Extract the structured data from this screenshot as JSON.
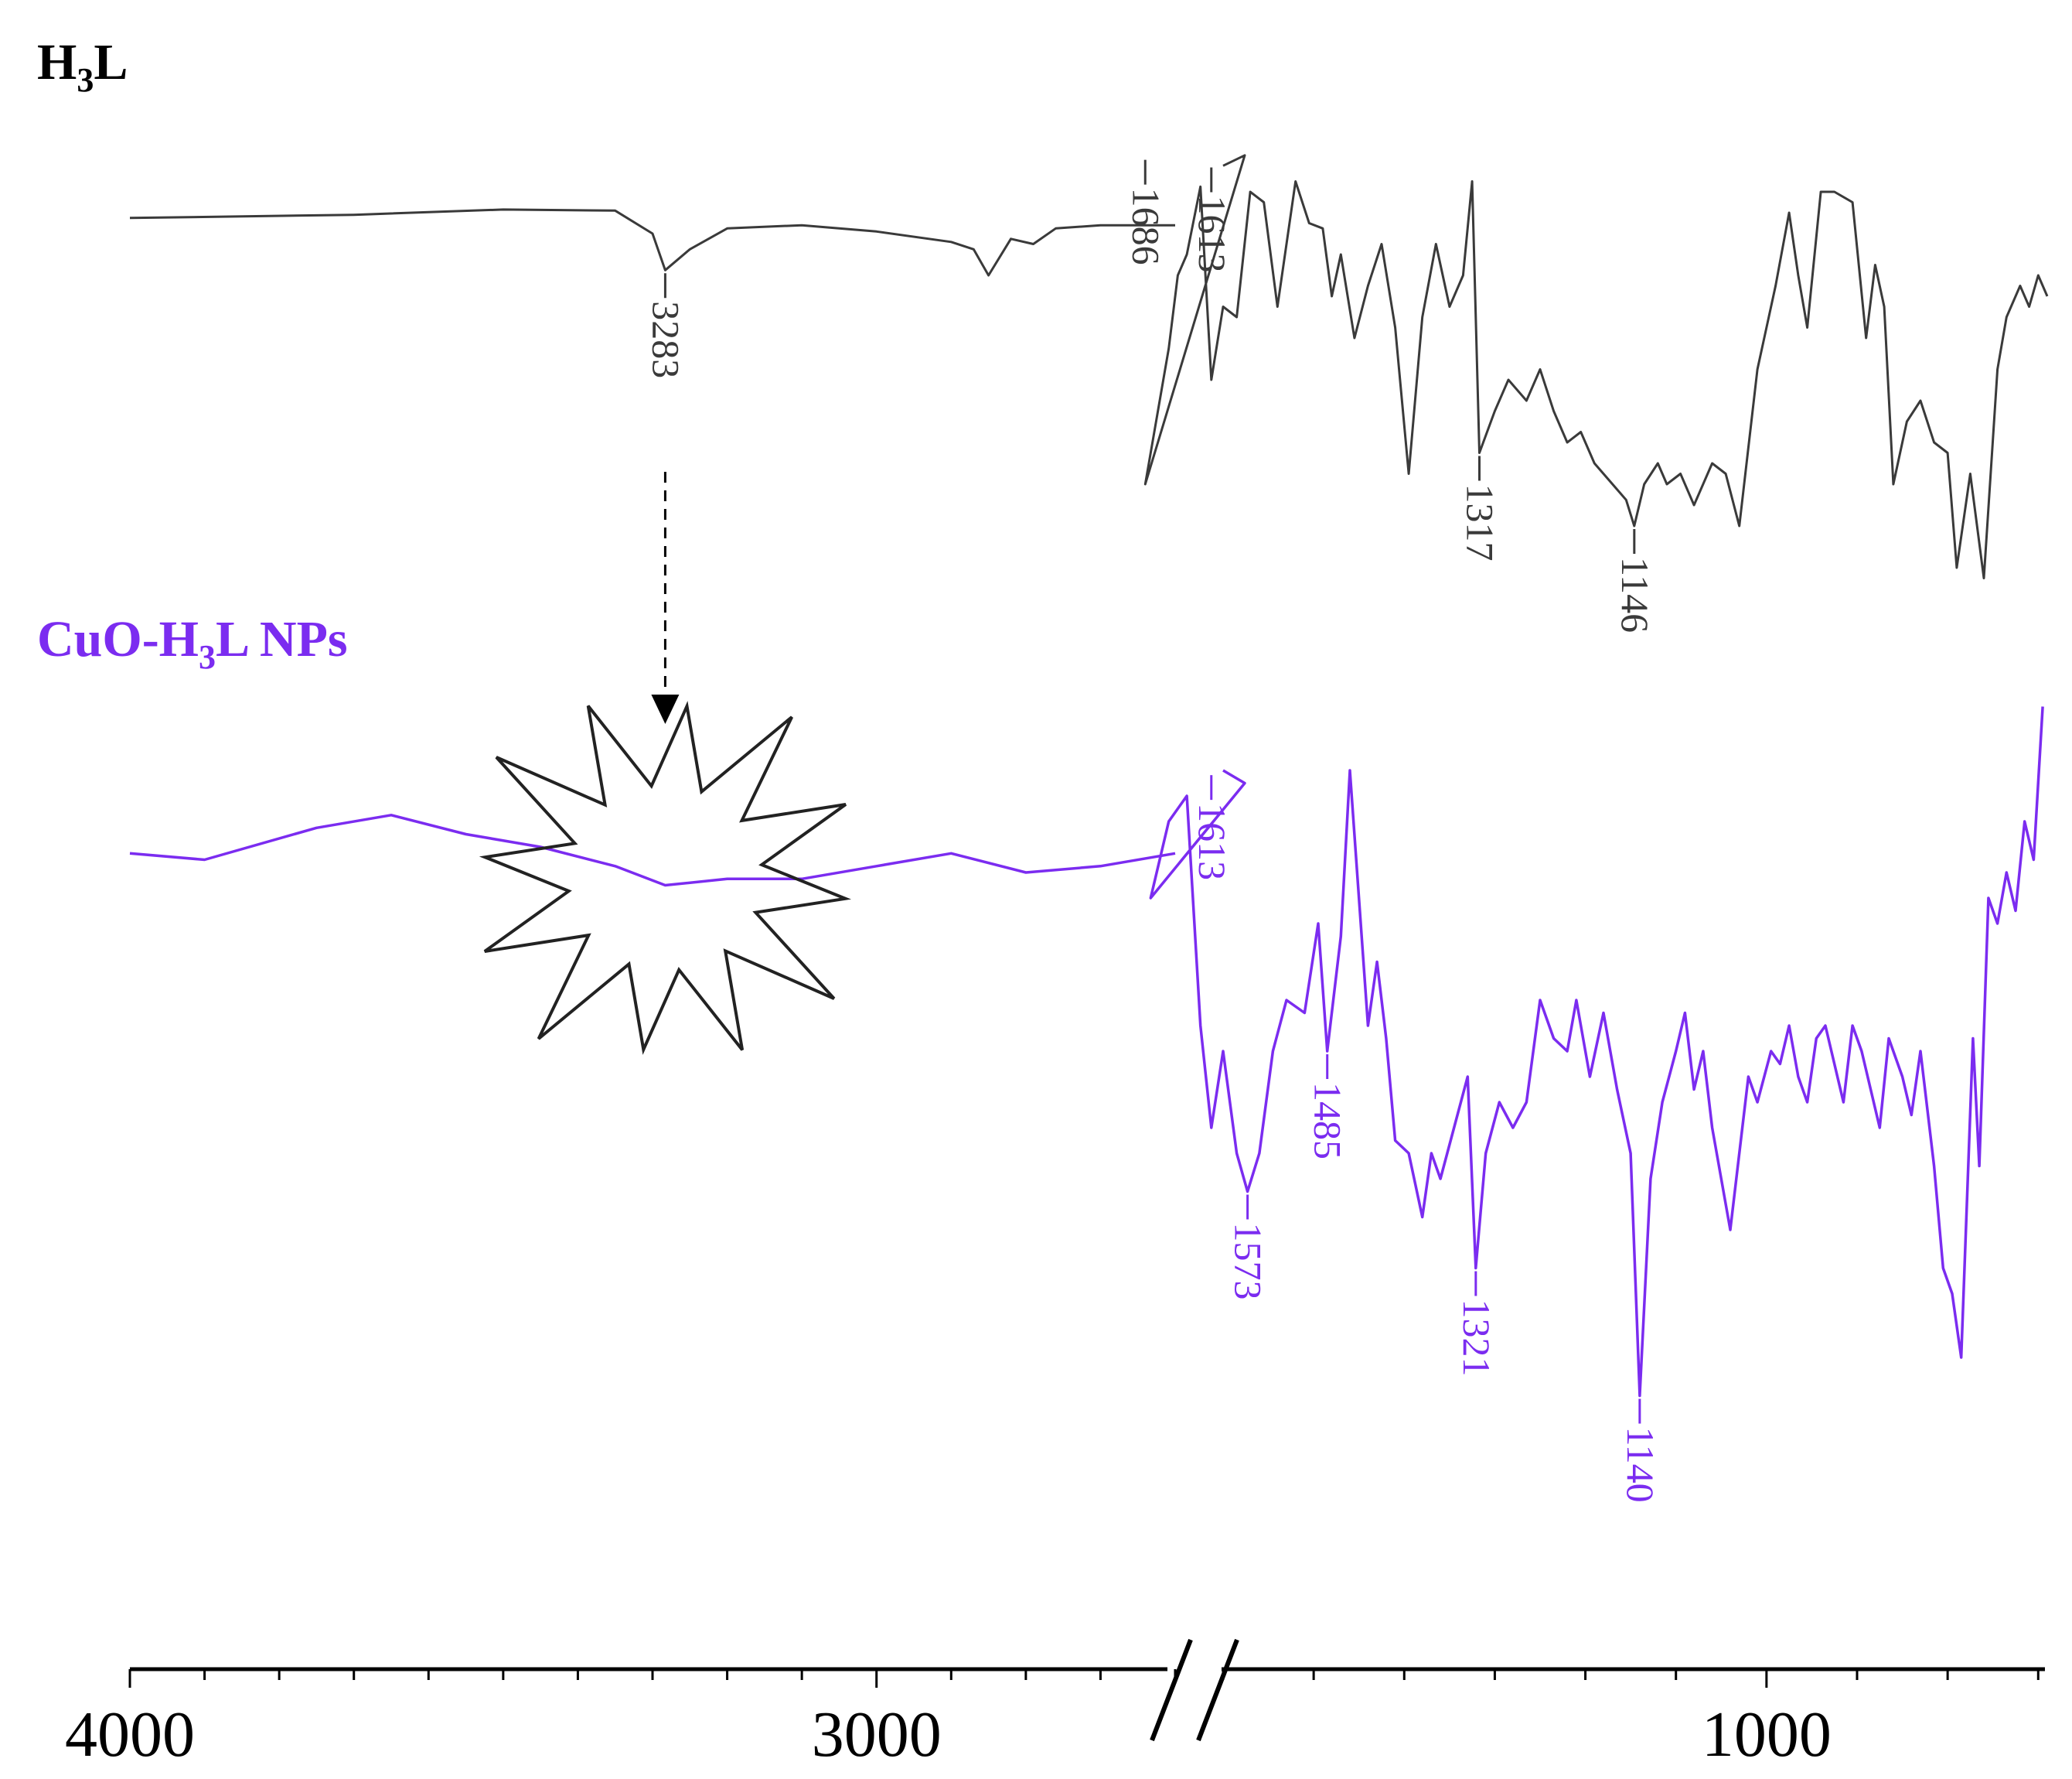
{
  "chart_data": {
    "type": "line",
    "xlabel": "",
    "ylabel": "",
    "x_axis": {
      "reversed": true,
      "broken": true,
      "segments": [
        {
          "from": 4000,
          "to": 2600
        },
        {
          "from": 1600,
          "to": 600
        }
      ],
      "tick_labels": [
        {
          "value": 4000,
          "label": "4000"
        },
        {
          "value": 3000,
          "label": "3000"
        },
        {
          "value": 1000,
          "label": "1000"
        }
      ]
    },
    "colors": {
      "H3L": "#3a3a3a",
      "CuO": "#7b2cf0",
      "axis": "#000000",
      "burst": "#222222"
    },
    "series": [
      {
        "name": "H₃L",
        "label_main": "H",
        "label_sub": "3",
        "label_rest": "L",
        "high_region": [
          [
            4000,
            -0.05
          ],
          [
            3700,
            -0.02
          ],
          [
            3500,
            0.03
          ],
          [
            3350,
            0.02
          ],
          [
            3300,
            -0.2
          ],
          [
            3283,
            -0.55
          ],
          [
            3250,
            -0.35
          ],
          [
            3200,
            -0.15
          ],
          [
            3100,
            -0.12
          ],
          [
            3000,
            -0.18
          ],
          [
            2900,
            -0.28
          ],
          [
            2870,
            -0.35
          ],
          [
            2850,
            -0.6
          ],
          [
            2820,
            -0.25
          ],
          [
            2790,
            -0.3
          ],
          [
            2760,
            -0.15
          ],
          [
            2700,
            -0.12
          ],
          [
            2600,
            -0.12
          ]
        ],
        "low_region": [
          [
            1600,
            0.45
          ],
          [
            1700,
            0.55
          ],
          [
            1686,
            -2.6
          ],
          [
            1660,
            -1.3
          ],
          [
            1650,
            -0.6
          ],
          [
            1640,
            -0.4
          ],
          [
            1625,
            0.25
          ],
          [
            1613,
            -1.6
          ],
          [
            1600,
            -0.9
          ],
          [
            1585,
            -1.0
          ],
          [
            1570,
            0.2
          ],
          [
            1555,
            0.1
          ],
          [
            1540,
            -0.9
          ],
          [
            1520,
            0.3
          ],
          [
            1505,
            -0.1
          ],
          [
            1490,
            -0.15
          ],
          [
            1480,
            -0.8
          ],
          [
            1470,
            -0.4
          ],
          [
            1455,
            -1.2
          ],
          [
            1440,
            -0.7
          ],
          [
            1425,
            -0.3
          ],
          [
            1410,
            -1.1
          ],
          [
            1395,
            -2.5
          ],
          [
            1380,
            -1.0
          ],
          [
            1365,
            -0.3
          ],
          [
            1350,
            -0.9
          ],
          [
            1335,
            -0.6
          ],
          [
            1325,
            0.3
          ],
          [
            1317,
            -2.3
          ],
          [
            1300,
            -1.9
          ],
          [
            1285,
            -1.6
          ],
          [
            1265,
            -1.8
          ],
          [
            1250,
            -1.5
          ],
          [
            1235,
            -1.9
          ],
          [
            1220,
            -2.2
          ],
          [
            1205,
            -2.1
          ],
          [
            1190,
            -2.4
          ],
          [
            1170,
            -2.6
          ],
          [
            1155,
            -2.75
          ],
          [
            1146,
            -3.0
          ],
          [
            1135,
            -2.6
          ],
          [
            1120,
            -2.4
          ],
          [
            1110,
            -2.6
          ],
          [
            1095,
            -2.5
          ],
          [
            1080,
            -2.8
          ],
          [
            1060,
            -2.4
          ],
          [
            1045,
            -2.5
          ],
          [
            1030,
            -3.0
          ],
          [
            1010,
            -1.5
          ],
          [
            990,
            -0.7
          ],
          [
            975,
            0.0
          ],
          [
            965,
            -0.6
          ],
          [
            955,
            -1.1
          ],
          [
            940,
            0.2
          ],
          [
            925,
            0.2
          ],
          [
            905,
            0.1
          ],
          [
            890,
            -1.2
          ],
          [
            880,
            -0.5
          ],
          [
            870,
            -0.9
          ],
          [
            860,
            -2.6
          ],
          [
            845,
            -2.0
          ],
          [
            830,
            -1.8
          ],
          [
            815,
            -2.2
          ],
          [
            800,
            -2.3
          ],
          [
            790,
            -3.4
          ],
          [
            775,
            -2.5
          ],
          [
            760,
            -3.5
          ],
          [
            745,
            -1.5
          ],
          [
            735,
            -1.0
          ],
          [
            720,
            -0.7
          ],
          [
            710,
            -0.9
          ],
          [
            700,
            -0.6
          ],
          [
            690,
            -0.8
          ]
        ]
      },
      {
        "name": "CuO-H₃L NPs",
        "label_main": "CuO-H",
        "label_sub": "3",
        "label_rest": "L NPs",
        "high_region": [
          [
            4000,
            -0.05
          ],
          [
            3900,
            -0.1
          ],
          [
            3750,
            0.15
          ],
          [
            3650,
            0.25
          ],
          [
            3550,
            0.1
          ],
          [
            3450,
            0.0
          ],
          [
            3350,
            -0.15
          ],
          [
            3283,
            -0.3
          ],
          [
            3200,
            -0.25
          ],
          [
            3100,
            -0.25
          ],
          [
            3000,
            -0.15
          ],
          [
            2900,
            -0.05
          ],
          [
            2800,
            -0.2
          ],
          [
            2700,
            -0.15
          ],
          [
            2600,
            -0.05
          ]
        ],
        "low_region": [
          [
            1600,
            0.6
          ],
          [
            1700,
            0.5
          ],
          [
            1680,
            -0.4
          ],
          [
            1660,
            0.2
          ],
          [
            1640,
            0.4
          ],
          [
            1625,
            -1.4
          ],
          [
            1613,
            -2.2
          ],
          [
            1600,
            -1.6
          ],
          [
            1585,
            -2.4
          ],
          [
            1573,
            -2.7
          ],
          [
            1560,
            -2.4
          ],
          [
            1545,
            -1.6
          ],
          [
            1530,
            -1.2
          ],
          [
            1510,
            -1.3
          ],
          [
            1495,
            -0.6
          ],
          [
            1485,
            -1.6
          ],
          [
            1470,
            -0.7
          ],
          [
            1460,
            0.6
          ],
          [
            1450,
            -0.4
          ],
          [
            1440,
            -1.4
          ],
          [
            1430,
            -0.9
          ],
          [
            1420,
            -1.5
          ],
          [
            1410,
            -2.3
          ],
          [
            1395,
            -2.4
          ],
          [
            1380,
            -2.9
          ],
          [
            1370,
            -2.4
          ],
          [
            1360,
            -2.6
          ],
          [
            1345,
            -2.2
          ],
          [
            1330,
            -1.8
          ],
          [
            1321,
            -3.3
          ],
          [
            1310,
            -2.4
          ],
          [
            1295,
            -2.0
          ],
          [
            1280,
            -2.2
          ],
          [
            1265,
            -2.0
          ],
          [
            1250,
            -1.2
          ],
          [
            1235,
            -1.5
          ],
          [
            1220,
            -1.6
          ],
          [
            1210,
            -1.2
          ],
          [
            1195,
            -1.8
          ],
          [
            1180,
            -1.3
          ],
          [
            1165,
            -1.9
          ],
          [
            1150,
            -2.4
          ],
          [
            1140,
            -4.3
          ],
          [
            1128,
            -2.6
          ],
          [
            1115,
            -2.0
          ],
          [
            1100,
            -1.6
          ],
          [
            1090,
            -1.3
          ],
          [
            1080,
            -1.9
          ],
          [
            1070,
            -1.6
          ],
          [
            1060,
            -2.2
          ],
          [
            1050,
            -2.6
          ],
          [
            1040,
            -3.0
          ],
          [
            1030,
            -2.4
          ],
          [
            1020,
            -1.8
          ],
          [
            1010,
            -2.0
          ],
          [
            995,
            -1.6
          ],
          [
            985,
            -1.7
          ],
          [
            975,
            -1.4
          ],
          [
            965,
            -1.8
          ],
          [
            955,
            -2.0
          ],
          [
            945,
            -1.5
          ],
          [
            935,
            -1.4
          ],
          [
            925,
            -1.7
          ],
          [
            915,
            -2.0
          ],
          [
            905,
            -1.4
          ],
          [
            895,
            -1.6
          ],
          [
            885,
            -1.9
          ],
          [
            875,
            -2.2
          ],
          [
            865,
            -1.5
          ],
          [
            850,
            -1.8
          ],
          [
            840,
            -2.1
          ],
          [
            830,
            -1.6
          ],
          [
            815,
            -2.5
          ],
          [
            805,
            -3.3
          ],
          [
            795,
            -3.5
          ],
          [
            785,
            -4.0
          ],
          [
            772,
            -1.5
          ],
          [
            765,
            -2.5
          ],
          [
            755,
            -0.4
          ],
          [
            745,
            -0.6
          ],
          [
            735,
            -0.2
          ],
          [
            725,
            -0.5
          ],
          [
            715,
            0.2
          ],
          [
            705,
            -0.1
          ],
          [
            695,
            1.1
          ]
        ]
      }
    ],
    "peak_labels": [
      {
        "series": 0,
        "x": 3283,
        "label": "3283"
      },
      {
        "series": 0,
        "x": 1686,
        "label": "1686"
      },
      {
        "series": 0,
        "x": 1613,
        "label": "1613"
      },
      {
        "series": 0,
        "x": 1317,
        "label": "1317"
      },
      {
        "series": 0,
        "x": 1146,
        "label": "1146"
      },
      {
        "series": 1,
        "x": 1613,
        "label": "1613"
      },
      {
        "series": 1,
        "x": 1573,
        "label": "1573"
      },
      {
        "series": 1,
        "x": 1485,
        "label": "1485"
      },
      {
        "series": 1,
        "x": 1321,
        "label": "1321"
      },
      {
        "series": 1,
        "x": 1140,
        "label": "1140"
      }
    ],
    "annotations": [
      {
        "type": "dashed-arrow",
        "from_series": 0,
        "to_series": 1,
        "x": 3283
      },
      {
        "type": "starburst",
        "series": 1,
        "x": 3283
      }
    ]
  }
}
